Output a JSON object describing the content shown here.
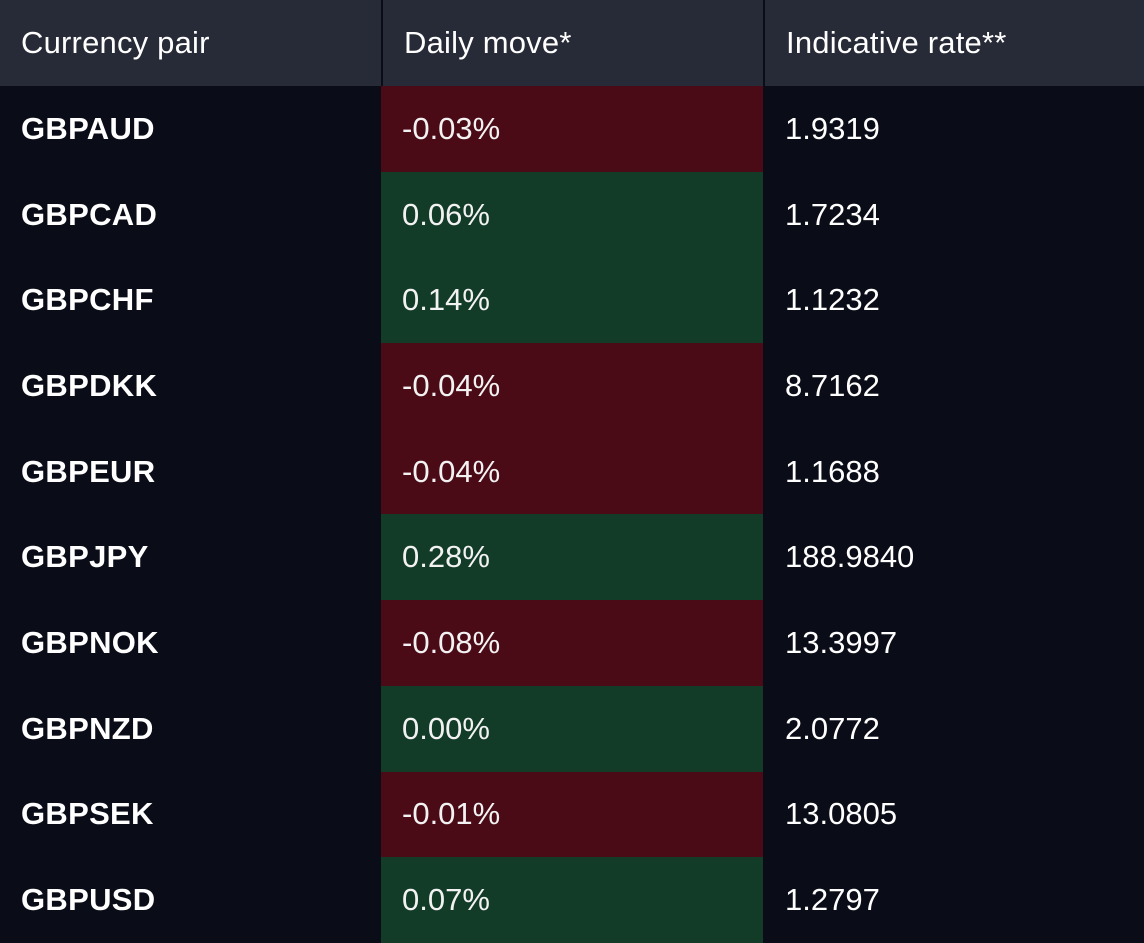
{
  "header": {
    "col_pair": "Currency pair",
    "col_move": "Daily move*",
    "col_rate": "Indicative rate**"
  },
  "colors": {
    "background": "#0a0c17",
    "header_bg": "#272a37",
    "negative_bg": "#4b0b16",
    "positive_bg": "#123b28",
    "text": "#ffffff"
  },
  "rows": [
    {
      "pair": "GBPAUD",
      "move": "-0.03%",
      "direction": "down",
      "rate": "1.9319"
    },
    {
      "pair": "GBPCAD",
      "move": "0.06%",
      "direction": "up",
      "rate": "1.7234"
    },
    {
      "pair": "GBPCHF",
      "move": "0.14%",
      "direction": "up",
      "rate": "1.1232"
    },
    {
      "pair": "GBPDKK",
      "move": "-0.04%",
      "direction": "down",
      "rate": "8.7162"
    },
    {
      "pair": "GBPEUR",
      "move": "-0.04%",
      "direction": "down",
      "rate": "1.1688"
    },
    {
      "pair": "GBPJPY",
      "move": "0.28%",
      "direction": "up",
      "rate": "188.9840"
    },
    {
      "pair": "GBPNOK",
      "move": "-0.08%",
      "direction": "down",
      "rate": "13.3997"
    },
    {
      "pair": "GBPNZD",
      "move": "0.00%",
      "direction": "up",
      "rate": "2.0772"
    },
    {
      "pair": "GBPSEK",
      "move": "-0.01%",
      "direction": "down",
      "rate": "13.0805"
    },
    {
      "pair": "GBPUSD",
      "move": "0.07%",
      "direction": "up",
      "rate": "1.2797"
    }
  ]
}
